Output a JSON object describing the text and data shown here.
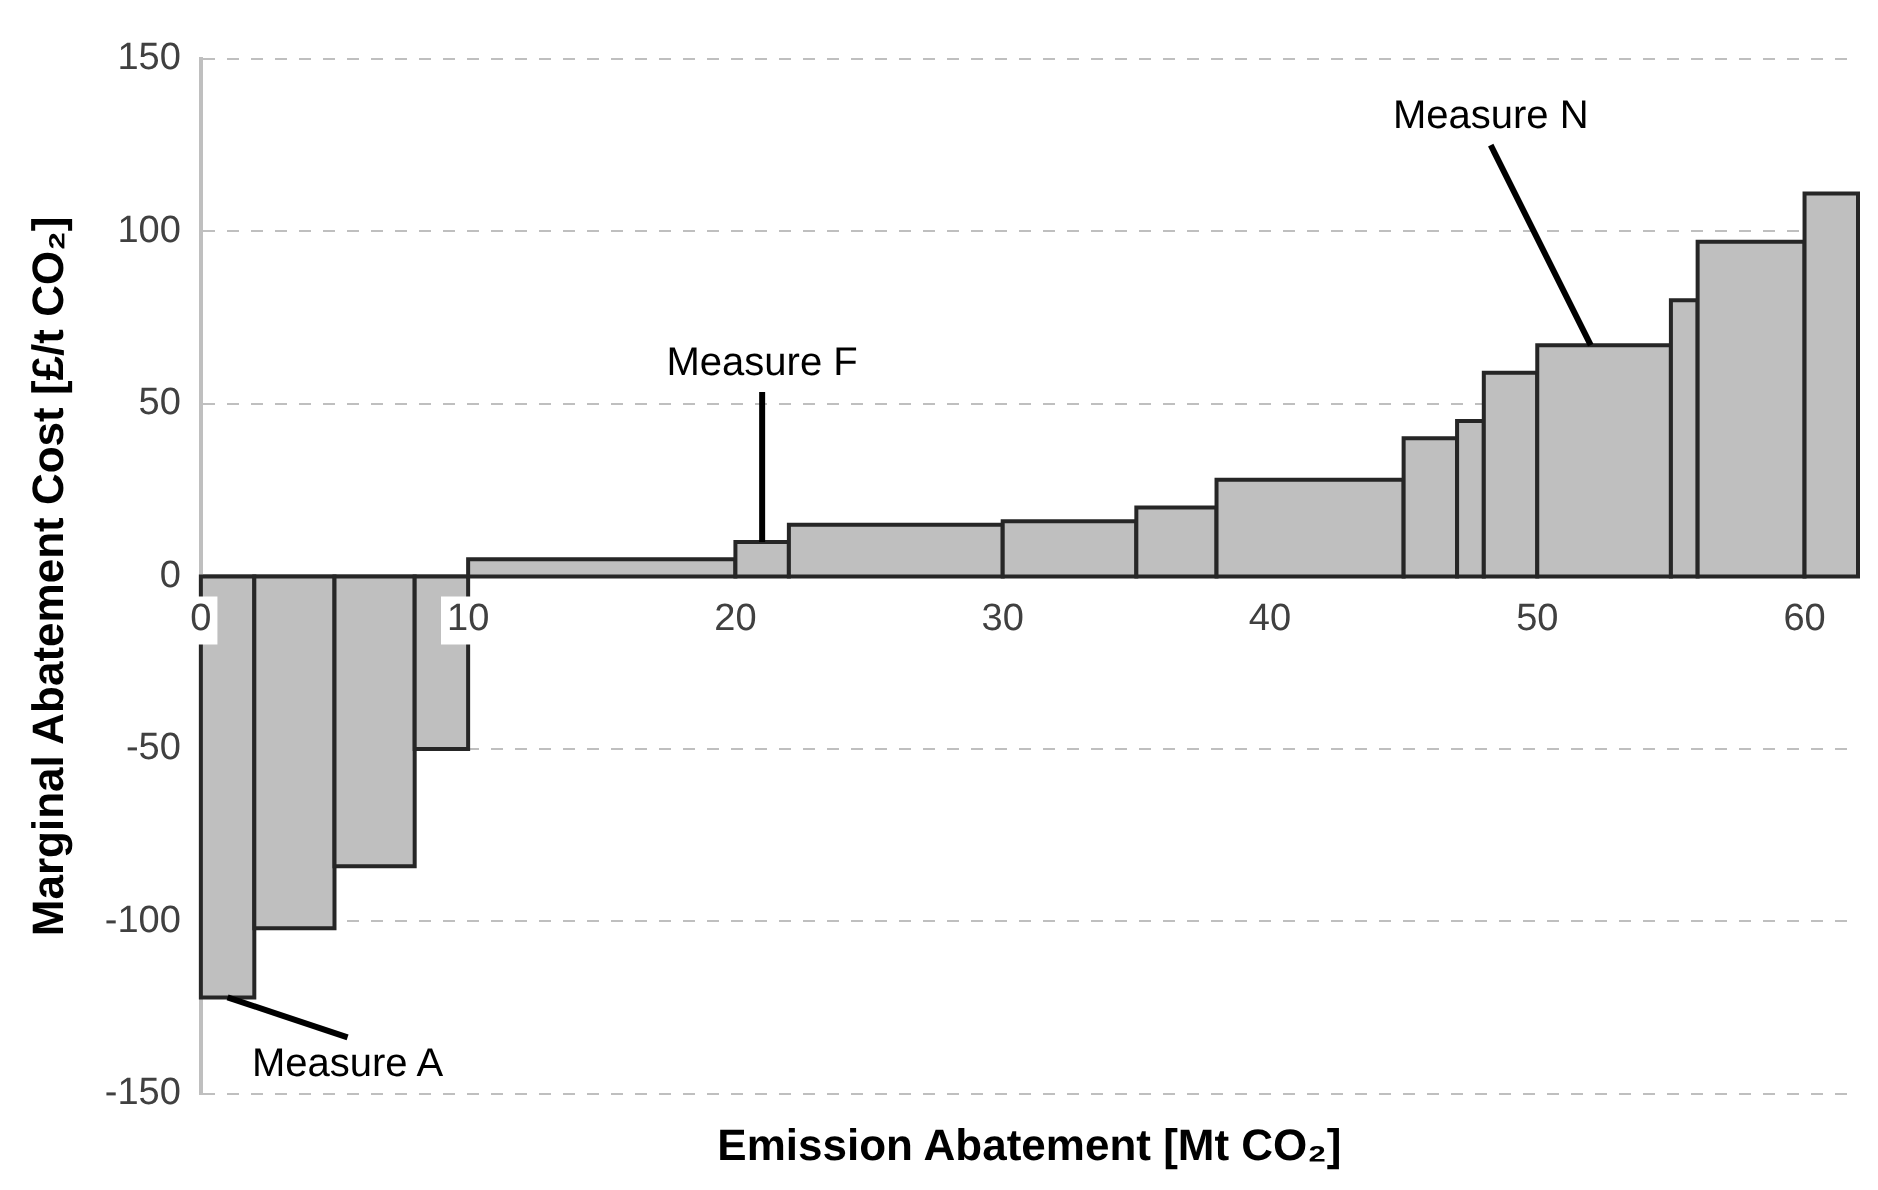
{
  "chart_data": {
    "type": "histogram",
    "xlabel": "Emission Abatement [Mt CO₂]",
    "ylabel": "Marginal Abatement Cost [£/t CO₂]",
    "bins": [
      0,
      2,
      5,
      8,
      10,
      20,
      22,
      30,
      35,
      38,
      45,
      47,
      48,
      50,
      55,
      56,
      60,
      62
    ],
    "values": [
      -122,
      -102,
      -84,
      -50,
      5,
      10,
      15,
      16,
      20,
      28,
      40,
      45,
      59,
      67,
      80,
      97,
      111
    ],
    "color": "#bfbfbf",
    "xlim": [
      0,
      62
    ],
    "xticks": [
      0,
      10,
      20,
      30,
      40,
      50,
      60
    ],
    "ylim": [
      -150,
      150
    ],
    "yticks": [
      -150,
      -100,
      -50,
      0,
      50,
      100,
      150
    ],
    "grid": "y",
    "annotations": [
      {
        "text": "Measure A",
        "x": 1,
        "y": -122
      },
      {
        "text": "Measure F",
        "x": 21,
        "y": 10
      },
      {
        "text": "Measure N",
        "x": 52,
        "y": 67
      }
    ]
  }
}
